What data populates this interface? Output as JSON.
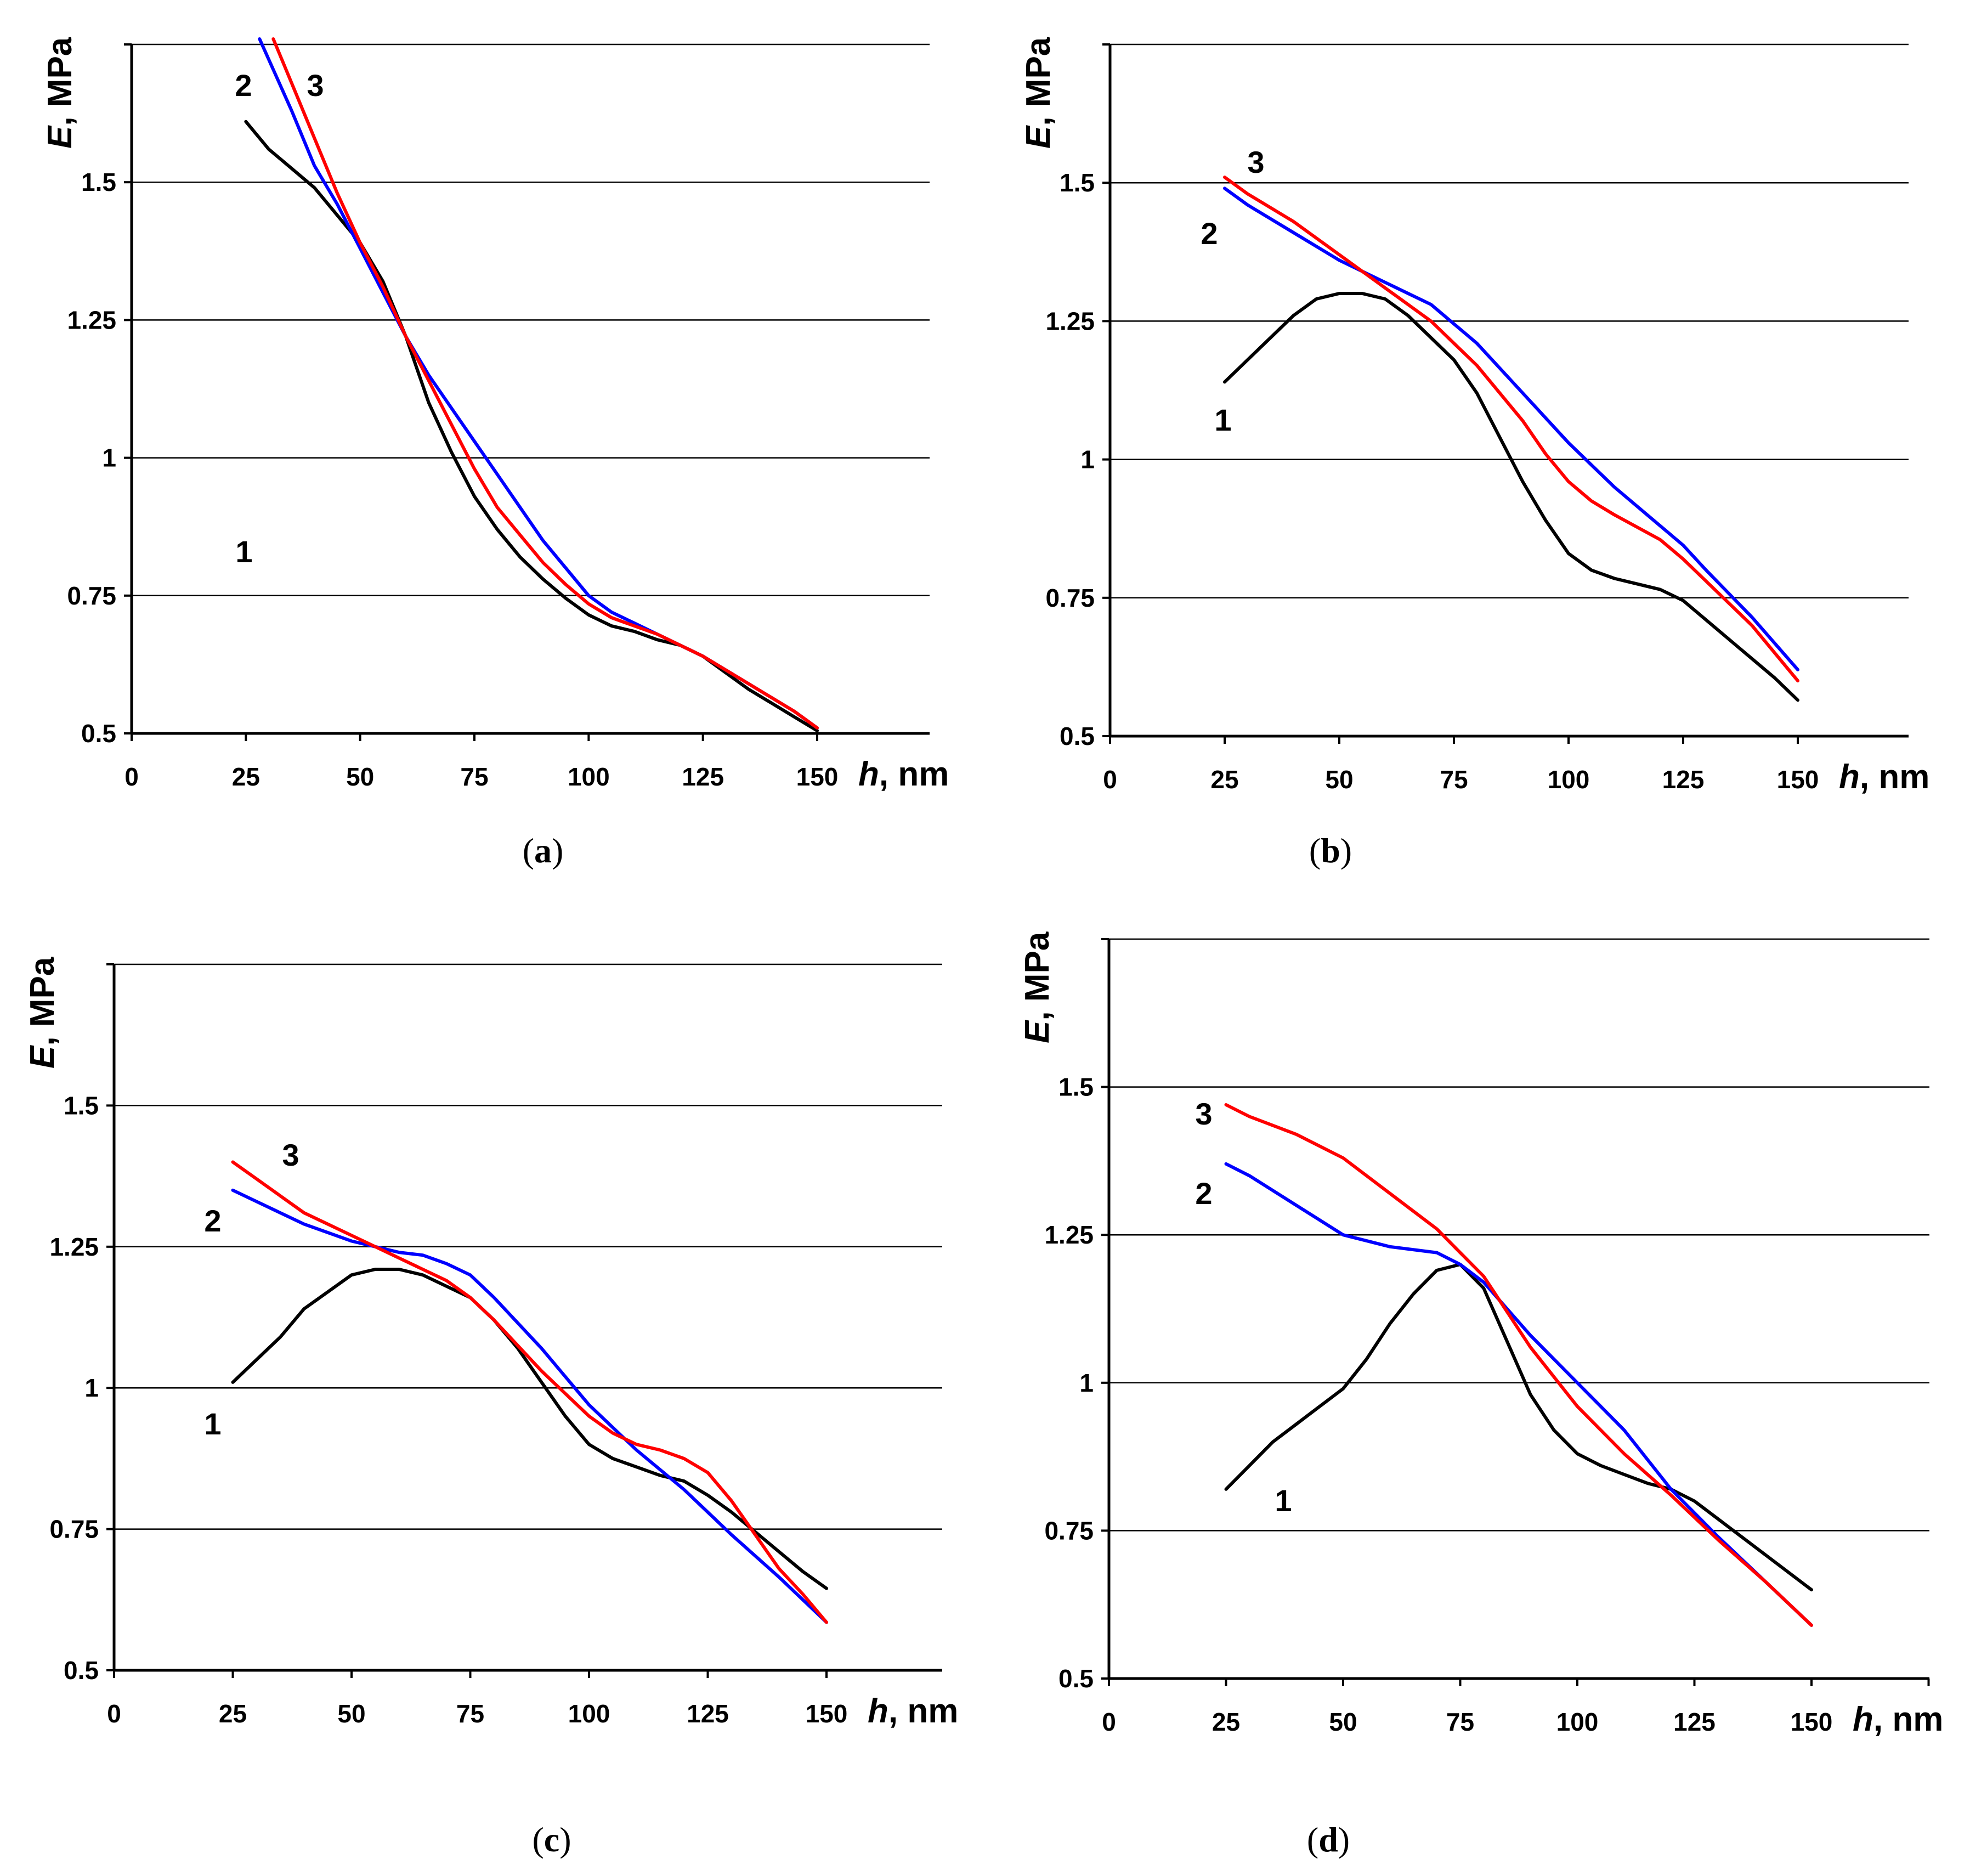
{
  "chart_data": [
    {
      "panel": "a",
      "type": "line",
      "caption": {
        "open": "(",
        "letter": "a",
        "close": ")"
      },
      "xlabel": {
        "var": "h",
        "unit": ", nm"
      },
      "ylabel": {
        "var": "E",
        "unit": ", MPa"
      },
      "xlim": [
        0,
        150
      ],
      "ylim": [
        0.5,
        1.75
      ],
      "x_ticks": [
        "0",
        "25",
        "50",
        "75",
        "100",
        "125",
        "150"
      ],
      "y_ticks": [
        "0.5",
        "0.75",
        "1",
        "1.25",
        "1.5"
      ],
      "grid": "horizontal",
      "series": [
        {
          "label": "1",
          "color": "#000000",
          "x": [
            25,
            30,
            40,
            50,
            55,
            60,
            65,
            70,
            75,
            80,
            85,
            90,
            95,
            100,
            105,
            110,
            115,
            120,
            125,
            130,
            135,
            140,
            145,
            150
          ],
          "y": [
            1.61,
            1.56,
            1.49,
            1.39,
            1.32,
            1.22,
            1.1,
            1.01,
            0.93,
            0.87,
            0.82,
            0.78,
            0.745,
            0.715,
            0.695,
            0.685,
            0.67,
            0.66,
            0.64,
            0.61,
            0.58,
            0.555,
            0.53,
            0.505
          ]
        },
        {
          "label": "2",
          "color": "#0000ff",
          "x": [
            28,
            35,
            40,
            45,
            50,
            55,
            60,
            65,
            70,
            75,
            80,
            85,
            90,
            95,
            100,
            105,
            110,
            115,
            120,
            125,
            130,
            135,
            140,
            145,
            150
          ],
          "y": [
            1.76,
            1.63,
            1.53,
            1.46,
            1.38,
            1.3,
            1.22,
            1.15,
            1.09,
            1.03,
            0.97,
            0.91,
            0.85,
            0.8,
            0.75,
            0.72,
            0.7,
            0.68,
            0.66,
            0.64,
            0.615,
            0.59,
            0.565,
            0.54,
            0.51
          ]
        },
        {
          "label": "3",
          "color": "#ff0000",
          "x": [
            31,
            35,
            40,
            45,
            50,
            55,
            60,
            65,
            70,
            75,
            80,
            85,
            90,
            95,
            100,
            105,
            110,
            115,
            120,
            125,
            130,
            135,
            140,
            145,
            150
          ],
          "y": [
            1.76,
            1.68,
            1.58,
            1.48,
            1.39,
            1.31,
            1.22,
            1.14,
            1.06,
            0.98,
            0.91,
            0.86,
            0.81,
            0.77,
            0.735,
            0.71,
            0.695,
            0.68,
            0.66,
            0.64,
            0.615,
            0.59,
            0.565,
            0.54,
            0.51
          ]
        }
      ]
    },
    {
      "panel": "b",
      "type": "line",
      "caption": {
        "open": "(",
        "letter": "b",
        "close": ")"
      },
      "xlabel": {
        "var": "h",
        "unit": ", nm"
      },
      "ylabel": {
        "var": "E",
        "unit": ", MPa"
      },
      "xlim": [
        0,
        150
      ],
      "ylim": [
        0.5,
        1.75
      ],
      "x_ticks": [
        "0",
        "25",
        "50",
        "75",
        "100",
        "125",
        "150"
      ],
      "y_ticks": [
        "0.5",
        "0.75",
        "1",
        "1.25",
        "1.5"
      ],
      "grid": "horizontal",
      "series": [
        {
          "label": "1",
          "color": "#000000",
          "x": [
            25,
            30,
            35,
            40,
            45,
            50,
            55,
            60,
            65,
            70,
            75,
            80,
            85,
            90,
            95,
            100,
            105,
            110,
            115,
            120,
            125,
            130,
            135,
            140,
            145,
            150
          ],
          "y": [
            1.14,
            1.18,
            1.22,
            1.26,
            1.29,
            1.3,
            1.3,
            1.29,
            1.26,
            1.22,
            1.18,
            1.12,
            1.04,
            0.96,
            0.89,
            0.83,
            0.8,
            0.785,
            0.775,
            0.765,
            0.745,
            0.71,
            0.675,
            0.64,
            0.605,
            0.565
          ]
        },
        {
          "label": "2",
          "color": "#0000ff",
          "x": [
            25,
            30,
            40,
            50,
            60,
            70,
            75,
            80,
            90,
            100,
            110,
            120,
            125,
            130,
            140,
            150
          ],
          "y": [
            1.49,
            1.46,
            1.41,
            1.36,
            1.32,
            1.28,
            1.245,
            1.21,
            1.12,
            1.03,
            0.95,
            0.88,
            0.845,
            0.8,
            0.715,
            0.62
          ]
        },
        {
          "label": "3",
          "color": "#ff0000",
          "x": [
            25,
            30,
            40,
            50,
            60,
            70,
            75,
            80,
            90,
            95,
            100,
            105,
            110,
            120,
            125,
            130,
            140,
            150
          ],
          "y": [
            1.51,
            1.48,
            1.43,
            1.37,
            1.31,
            1.25,
            1.21,
            1.17,
            1.07,
            1.01,
            0.96,
            0.925,
            0.9,
            0.855,
            0.82,
            0.78,
            0.7,
            0.6
          ]
        }
      ]
    },
    {
      "panel": "c",
      "type": "line",
      "caption": {
        "open": "(",
        "letter": "c",
        "close": ")"
      },
      "xlabel": {
        "var": "h",
        "unit": ", nm"
      },
      "ylabel": {
        "var": "E",
        "unit": ", MPa"
      },
      "xlim": [
        0,
        150
      ],
      "ylim": [
        0.5,
        1.75
      ],
      "x_ticks": [
        "0",
        "25",
        "50",
        "75",
        "100",
        "125",
        "150"
      ],
      "y_ticks": [
        "0.5",
        "0.75",
        "1",
        "1.25",
        "1.5"
      ],
      "grid": "horizontal",
      "series": [
        {
          "label": "1",
          "color": "#000000",
          "x": [
            25,
            30,
            35,
            40,
            45,
            50,
            55,
            60,
            65,
            70,
            75,
            80,
            85,
            90,
            95,
            100,
            105,
            110,
            115,
            120,
            125,
            130,
            135,
            140,
            145,
            150
          ],
          "y": [
            1.01,
            1.05,
            1.09,
            1.14,
            1.17,
            1.2,
            1.21,
            1.21,
            1.2,
            1.18,
            1.16,
            1.12,
            1.07,
            1.01,
            0.95,
            0.9,
            0.875,
            0.86,
            0.845,
            0.835,
            0.81,
            0.78,
            0.745,
            0.71,
            0.675,
            0.645
          ]
        },
        {
          "label": "2",
          "color": "#0000ff",
          "x": [
            25,
            30,
            40,
            50,
            60,
            65,
            70,
            75,
            80,
            90,
            100,
            110,
            120,
            130,
            140,
            150
          ],
          "y": [
            1.35,
            1.33,
            1.29,
            1.26,
            1.24,
            1.235,
            1.22,
            1.2,
            1.16,
            1.07,
            0.97,
            0.89,
            0.82,
            0.74,
            0.665,
            0.585
          ]
        },
        {
          "label": "3",
          "color": "#ff0000",
          "x": [
            25,
            30,
            40,
            50,
            60,
            70,
            75,
            80,
            90,
            100,
            105,
            110,
            115,
            120,
            125,
            130,
            135,
            140,
            145,
            150
          ],
          "y": [
            1.4,
            1.37,
            1.31,
            1.27,
            1.23,
            1.19,
            1.16,
            1.12,
            1.03,
            0.95,
            0.92,
            0.9,
            0.89,
            0.875,
            0.85,
            0.8,
            0.74,
            0.68,
            0.635,
            0.585
          ]
        }
      ]
    },
    {
      "panel": "d",
      "type": "line",
      "caption": {
        "open": "(",
        "letter": "d",
        "close": ")"
      },
      "xlabel": {
        "var": "h",
        "unit": ", nm"
      },
      "ylabel": {
        "var": "E",
        "unit": ", MPa"
      },
      "xlim": [
        0,
        150
      ],
      "ylim": [
        0.5,
        1.75
      ],
      "x_ticks": [
        "0",
        "25",
        "50",
        "75",
        "100",
        "125",
        "150"
      ],
      "y_ticks": [
        "0.5",
        "0.75",
        "1",
        "1.25",
        "1.5"
      ],
      "grid": "horizontal",
      "series": [
        {
          "label": "1",
          "color": "#000000",
          "x": [
            25,
            30,
            35,
            40,
            45,
            50,
            55,
            60,
            65,
            70,
            75,
            80,
            85,
            90,
            95,
            100,
            105,
            110,
            115,
            120,
            125,
            130,
            135,
            140,
            145,
            150
          ],
          "y": [
            0.82,
            0.86,
            0.9,
            0.93,
            0.96,
            0.99,
            1.04,
            1.1,
            1.15,
            1.19,
            1.2,
            1.16,
            1.07,
            0.98,
            0.92,
            0.88,
            0.86,
            0.845,
            0.83,
            0.82,
            0.8,
            0.77,
            0.74,
            0.71,
            0.68,
            0.65
          ]
        },
        {
          "label": "2",
          "color": "#0000ff",
          "x": [
            25,
            30,
            40,
            50,
            60,
            70,
            75,
            80,
            90,
            100,
            110,
            120,
            130,
            140,
            150
          ],
          "y": [
            1.37,
            1.35,
            1.3,
            1.25,
            1.23,
            1.22,
            1.2,
            1.17,
            1.08,
            1.0,
            0.92,
            0.82,
            0.74,
            0.665,
            0.59
          ]
        },
        {
          "label": "3",
          "color": "#ff0000",
          "x": [
            25,
            30,
            40,
            50,
            60,
            70,
            75,
            80,
            90,
            100,
            110,
            120,
            130,
            140,
            150
          ],
          "y": [
            1.47,
            1.45,
            1.42,
            1.38,
            1.32,
            1.26,
            1.22,
            1.18,
            1.06,
            0.96,
            0.88,
            0.81,
            0.735,
            0.665,
            0.59
          ]
        }
      ]
    }
  ]
}
